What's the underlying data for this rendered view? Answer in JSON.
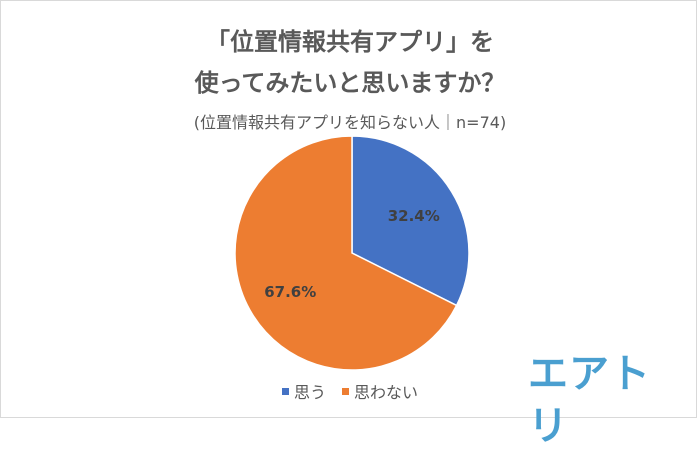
{
  "chart_data": {
    "type": "pie",
    "title": "「位置情報共有アプリ」を 使ってみたいと思いますか？",
    "title_line1": "「位置情報共有アプリ」を",
    "title_line2": "使ってみたいと思いますか？",
    "subtitle": "(位置情報共有アプリを知らない人｜n=74)",
    "categories": [
      "思う",
      "思わない"
    ],
    "values": [
      32.4,
      67.6
    ],
    "data_labels": [
      "32.4%",
      "67.6%"
    ],
    "colors": [
      "#4472c4",
      "#ed7d31"
    ],
    "legend_position": "bottom"
  },
  "logo": {
    "text": "エアトリ",
    "color": "#4a9fd0"
  }
}
